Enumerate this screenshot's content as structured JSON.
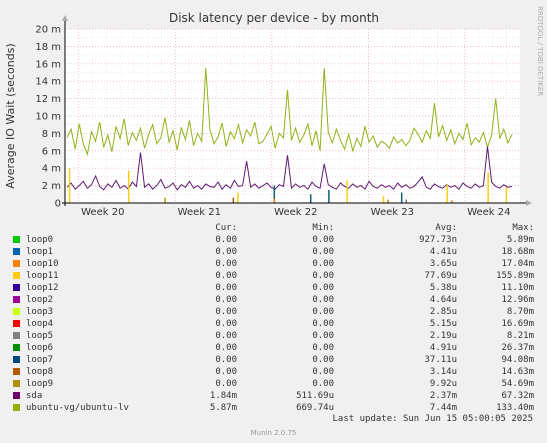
{
  "chart_data": {
    "type": "line",
    "title": "Disk latency per device - by month",
    "ylabel": "Average IO Wait (seconds)",
    "side_label": "RRDTOOL / TOBI OETIKER",
    "ylim": [
      0,
      0.02
    ],
    "y_ticks": [
      {
        "v": 0,
        "label": "0"
      },
      {
        "v": 0.002,
        "label": "2 m"
      },
      {
        "v": 0.004,
        "label": "4 m"
      },
      {
        "v": 0.006,
        "label": "6 m"
      },
      {
        "v": 0.008,
        "label": "8 m"
      },
      {
        "v": 0.01,
        "label": "10 m"
      },
      {
        "v": 0.012,
        "label": "12 m"
      },
      {
        "v": 0.014,
        "label": "14 m"
      },
      {
        "v": 0.016,
        "label": "16 m"
      },
      {
        "v": 0.018,
        "label": "18 m"
      },
      {
        "v": 0.02,
        "label": "20 m"
      }
    ],
    "x_ticks": [
      "Week 20",
      "Week 21",
      "Week 22",
      "Week 23",
      "Week 24"
    ],
    "grid": true,
    "series": [
      {
        "name": "ubuntu-vg/ubuntu-lv",
        "color": "#8fb31a",
        "values": [
          0.0075,
          0.0085,
          0.0062,
          0.0091,
          0.0068,
          0.0056,
          0.0082,
          0.0071,
          0.0093,
          0.0064,
          0.0078,
          0.0059,
          0.0088,
          0.0074,
          0.0097,
          0.0066,
          0.0081,
          0.0072,
          0.0086,
          0.0063,
          0.0079,
          0.009,
          0.0068,
          0.0075,
          0.0098,
          0.007,
          0.0083,
          0.0061,
          0.0087,
          0.0073,
          0.0095,
          0.0066,
          0.008,
          0.0071,
          0.0155,
          0.0085,
          0.0068,
          0.0076,
          0.0092,
          0.0065,
          0.0082,
          0.0074,
          0.009,
          0.0069,
          0.0084,
          0.0077,
          0.0093,
          0.0068,
          0.0071,
          0.0079,
          0.0088,
          0.0063,
          0.008,
          0.0075,
          0.013,
          0.0072,
          0.0086,
          0.007,
          0.0078,
          0.0091,
          0.0066,
          0.0083,
          0.006,
          0.0155,
          0.0081,
          0.0069,
          0.0085,
          0.0072,
          0.0062,
          0.0079,
          0.006,
          0.0074,
          0.0065,
          0.0088,
          0.007,
          0.0077,
          0.0064,
          0.0071,
          0.0068,
          0.0063,
          0.0076,
          0.0069,
          0.0073,
          0.0066,
          0.0072,
          0.0086,
          0.0079,
          0.007,
          0.0083,
          0.0074,
          0.0115,
          0.0076,
          0.0089,
          0.0072,
          0.0084,
          0.0068,
          0.008,
          0.0073,
          0.0092,
          0.0067,
          0.0075,
          0.007,
          0.0081,
          0.0064,
          0.0078,
          0.012,
          0.0074,
          0.0085,
          0.0069,
          0.0079
        ]
      },
      {
        "name": "sda",
        "color": "#5d1a74",
        "values": [
          0.0018,
          0.0023,
          0.0016,
          0.002,
          0.0025,
          0.0017,
          0.0021,
          0.0031,
          0.0019,
          0.0015,
          0.0022,
          0.0018,
          0.0026,
          0.0017,
          0.002,
          0.0016,
          0.0024,
          0.0019,
          0.0058,
          0.0018,
          0.0022,
          0.0016,
          0.002,
          0.0027,
          0.0017,
          0.0019,
          0.0023,
          0.0015,
          0.0021,
          0.0018,
          0.0025,
          0.0017,
          0.002,
          0.0016,
          0.0022,
          0.0019,
          0.0018,
          0.0024,
          0.0016,
          0.0021,
          0.0017,
          0.0026,
          0.0019,
          0.002,
          0.0048,
          0.0018,
          0.0022,
          0.0017,
          0.002,
          0.0023,
          0.0018,
          0.0016,
          0.0021,
          0.0019,
          0.0055,
          0.0017,
          0.0022,
          0.0018,
          0.002,
          0.0016,
          0.0024,
          0.0019,
          0.0017,
          0.0045,
          0.0021,
          0.0018,
          0.0016,
          0.0023,
          0.0019,
          0.0017,
          0.0022,
          0.0018,
          0.002,
          0.0016,
          0.0025,
          0.0019,
          0.0017,
          0.0021,
          0.0018,
          0.002,
          0.0016,
          0.0023,
          0.0018,
          0.0021,
          0.0017,
          0.0019,
          0.0024,
          0.003,
          0.0018,
          0.0016,
          0.0022,
          0.0019,
          0.0017,
          0.0021,
          0.0018,
          0.002,
          0.0016,
          0.0023,
          0.0019,
          0.0017,
          0.0022,
          0.0018,
          0.002,
          0.0065,
          0.0024,
          0.0019,
          0.0017,
          0.0021,
          0.0018,
          0.0019
        ]
      },
      {
        "name": "loop11",
        "color": "#f4d011",
        "spikes": [
          [
            0.001,
            0.004
          ],
          [
            0.014,
            0.0037
          ],
          [
            0.038,
            0.0012
          ],
          [
            0.062,
            0.0026
          ],
          [
            0.07,
            0.0008
          ],
          [
            0.084,
            0.0021
          ],
          [
            0.093,
            0.0035
          ],
          [
            0.097,
            0.0018
          ]
        ]
      },
      {
        "name": "loop7",
        "color": "#105e6e",
        "spikes": [
          [
            0.046,
            0.002
          ],
          [
            0.054,
            0.001
          ],
          [
            0.058,
            0.0015
          ],
          [
            0.074,
            0.0012
          ]
        ]
      },
      {
        "name": "loop10",
        "color": "#ef7f12",
        "spikes": [
          [
            0.037,
            0.0006
          ],
          [
            0.046,
            0.0005
          ],
          [
            0.085,
            0.0003
          ]
        ]
      },
      {
        "name": "loop9",
        "color": "#b29d00",
        "spikes": [
          [
            0.022,
            0.0006
          ],
          [
            0.071,
            0.0004
          ]
        ]
      },
      {
        "name": "loop5",
        "color": "#7a7a7a",
        "spikes": [
          [
            0.075,
            0.0004
          ]
        ]
      },
      {
        "name": "loop8",
        "color": "#b35c11",
        "spikes": [
          [
            0.037,
            0.0006
          ]
        ]
      }
    ],
    "x_range_days": [
      0,
      33
    ],
    "week_positions_days": [
      1,
      8,
      15,
      22,
      29
    ],
    "legend_headers": [
      "Cur:",
      "Min:",
      "Avg:",
      "Max:"
    ],
    "legend": [
      {
        "name": "loop0",
        "color": "#00cc00",
        "cur": "0.00",
        "min": "0.00",
        "avg": "927.73n",
        "max": "5.89m"
      },
      {
        "name": "loop1",
        "color": "#0066b3",
        "cur": "0.00",
        "min": "0.00",
        "avg": "4.41u",
        "max": "18.68m"
      },
      {
        "name": "loop10",
        "color": "#ff8000",
        "cur": "0.00",
        "min": "0.00",
        "avg": "3.65u",
        "max": "17.04m"
      },
      {
        "name": "loop11",
        "color": "#ffcc00",
        "cur": "0.00",
        "min": "0.00",
        "avg": "77.69u",
        "max": "155.89m"
      },
      {
        "name": "loop12",
        "color": "#330099",
        "cur": "0.00",
        "min": "0.00",
        "avg": "5.38u",
        "max": "11.10m"
      },
      {
        "name": "loop2",
        "color": "#990099",
        "cur": "0.00",
        "min": "0.00",
        "avg": "4.64u",
        "max": "12.96m"
      },
      {
        "name": "loop3",
        "color": "#ccff00",
        "cur": "0.00",
        "min": "0.00",
        "avg": "2.85u",
        "max": "8.70m"
      },
      {
        "name": "loop4",
        "color": "#ff0000",
        "cur": "0.00",
        "min": "0.00",
        "avg": "5.15u",
        "max": "16.69m"
      },
      {
        "name": "loop5",
        "color": "#808080",
        "cur": "0.00",
        "min": "0.00",
        "avg": "2.19u",
        "max": "8.21m"
      },
      {
        "name": "loop6",
        "color": "#008f00",
        "cur": "0.00",
        "min": "0.00",
        "avg": "4.91u",
        "max": "26.37m"
      },
      {
        "name": "loop7",
        "color": "#00487d",
        "cur": "0.00",
        "min": "0.00",
        "avg": "37.11u",
        "max": "94.08m"
      },
      {
        "name": "loop8",
        "color": "#b35a00",
        "cur": "0.00",
        "min": "0.00",
        "avg": "3.14u",
        "max": "14.63m"
      },
      {
        "name": "loop9",
        "color": "#b38f00",
        "cur": "0.00",
        "min": "0.00",
        "avg": "9.92u",
        "max": "54.69m"
      },
      {
        "name": "sda",
        "color": "#6b006b",
        "cur": "1.84m",
        "min": "511.69u",
        "avg": "2.37m",
        "max": "67.32m"
      },
      {
        "name": "ubuntu-vg/ubuntu-lv",
        "color": "#8fb300",
        "cur": "5.87m",
        "min": "669.74u",
        "avg": "7.44m",
        "max": "133.40m"
      }
    ]
  },
  "last_update": "Last update: Sun Jun 15 05:00:05 2025",
  "footer": "Munin 2.0.75"
}
